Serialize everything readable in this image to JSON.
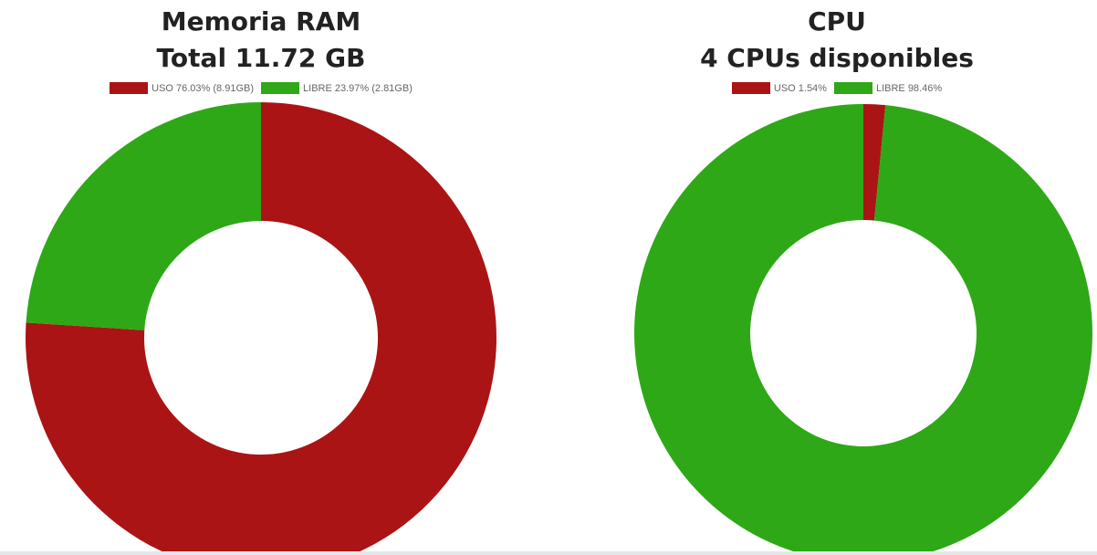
{
  "colors": {
    "uso": "#ab1414",
    "libre": "#2ea817"
  },
  "chart_data": [
    {
      "type": "pie",
      "donut": true,
      "title": [
        "Memoria RAM",
        "Total 11.72 GB"
      ],
      "legend_position": "top",
      "categories": [
        "USO 76.03% (8.91GB)",
        "LIBRE 23.97% (2.81GB)"
      ],
      "values": [
        76.03,
        23.97
      ],
      "colors": [
        "#ab1414",
        "#2ea817"
      ]
    },
    {
      "type": "pie",
      "donut": true,
      "title": [
        "CPU",
        "4 CPUs disponibles"
      ],
      "legend_position": "top",
      "categories": [
        "USO 1.54%",
        "LIBRE 98.46%"
      ],
      "values": [
        1.54,
        98.46
      ],
      "colors": [
        "#ab1414",
        "#2ea817"
      ]
    }
  ]
}
